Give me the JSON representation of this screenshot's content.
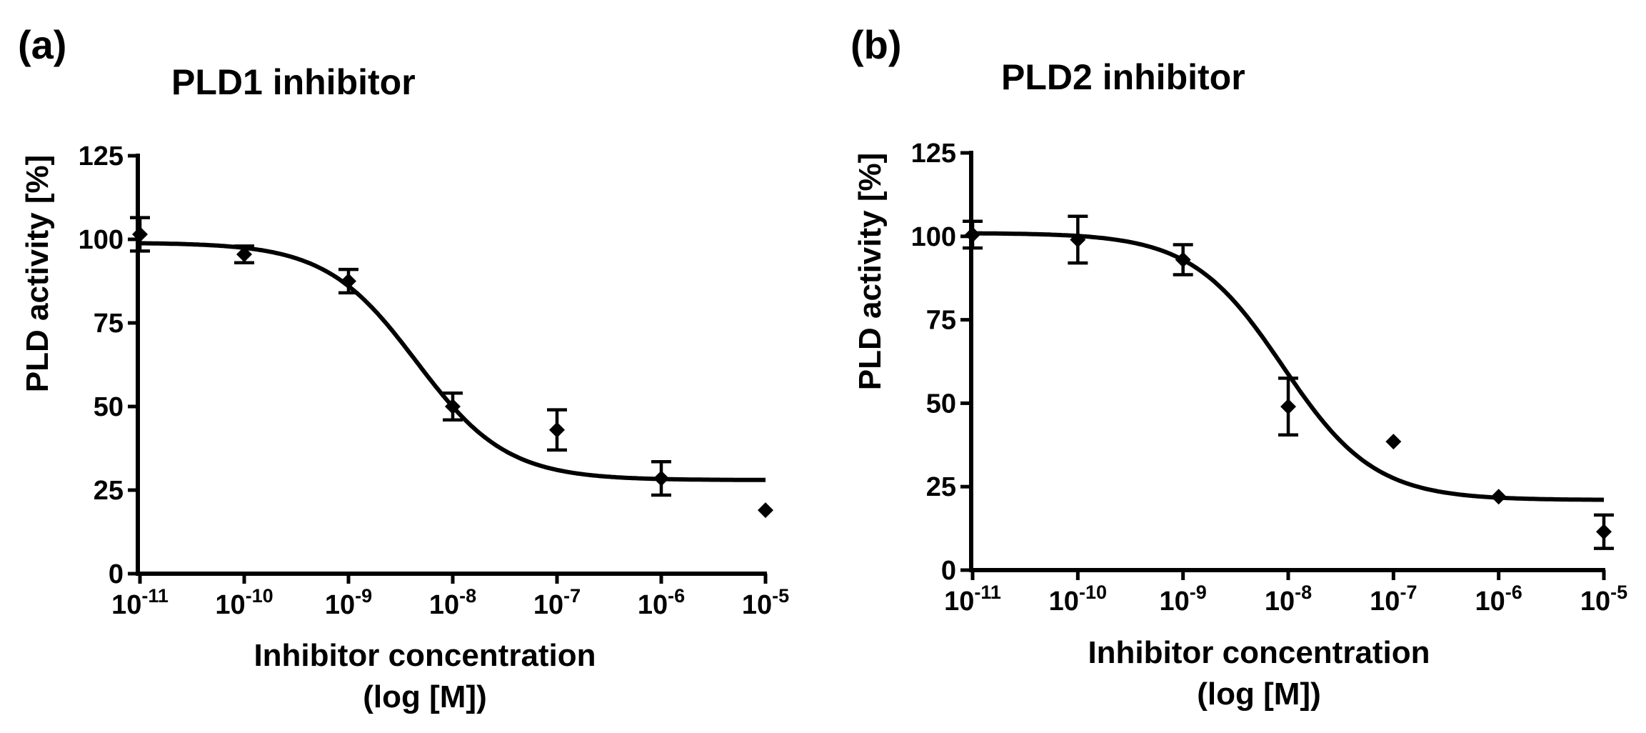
{
  "chart_data": [
    {
      "type": "scatter",
      "panel_label": "(a)",
      "title": "PLD1 inhibitor",
      "xlabel": "Inhibitor concentration",
      "xlabel_line2": "(log [M])",
      "ylabel": "PLD activity [%]",
      "xscale": "log",
      "xlim": [
        1e-11,
        1e-05
      ],
      "ylim": [
        0,
        125
      ],
      "xticks": [
        {
          "base": "10",
          "exp": "-11"
        },
        {
          "base": "10",
          "exp": "-10"
        },
        {
          "base": "10",
          "exp": "-9"
        },
        {
          "base": "10",
          "exp": "-8"
        },
        {
          "base": "10",
          "exp": "-7"
        },
        {
          "base": "10",
          "exp": "-6"
        },
        {
          "base": "10",
          "exp": "-5"
        }
      ],
      "yticks": [
        "0",
        "25",
        "50",
        "75",
        "100",
        "125"
      ],
      "points": [
        {
          "log_x": -11,
          "y": 101.5,
          "err": 5
        },
        {
          "log_x": -10,
          "y": 95.5,
          "err": 2.5
        },
        {
          "log_x": -9,
          "y": 87.5,
          "err": 3.5
        },
        {
          "log_x": -8,
          "y": 50,
          "err": 4
        },
        {
          "log_x": -7,
          "y": 43,
          "err": 6
        },
        {
          "log_x": -6,
          "y": 28.5,
          "err": 5
        },
        {
          "log_x": -5,
          "y": 19,
          "err": 0
        }
      ],
      "fit": {
        "model": "sigmoidal dose-response",
        "top": 99,
        "bottom": 28,
        "log_ec50": -8.35,
        "hill": 1
      }
    },
    {
      "type": "scatter",
      "panel_label": "(b)",
      "title": "PLD2 inhibitor",
      "xlabel": "Inhibitor concentration",
      "xlabel_line2": "(log [M])",
      "ylabel": "PLD activity [%]",
      "xscale": "log",
      "xlim": [
        1e-11,
        1e-05
      ],
      "ylim": [
        0,
        125
      ],
      "xticks": [
        {
          "base": "10",
          "exp": "-11"
        },
        {
          "base": "10",
          "exp": "-10"
        },
        {
          "base": "10",
          "exp": "-9"
        },
        {
          "base": "10",
          "exp": "-8"
        },
        {
          "base": "10",
          "exp": "-7"
        },
        {
          "base": "10",
          "exp": "-6"
        },
        {
          "base": "10",
          "exp": "-5"
        }
      ],
      "yticks": [
        "0",
        "25",
        "50",
        "75",
        "100",
        "125"
      ],
      "points": [
        {
          "log_x": -11,
          "y": 100.5,
          "err": 4
        },
        {
          "log_x": -10,
          "y": 99,
          "err": 7
        },
        {
          "log_x": -9,
          "y": 93,
          "err": 4.5
        },
        {
          "log_x": -8,
          "y": 49,
          "err": 8.5
        },
        {
          "log_x": -7,
          "y": 38.5,
          "err": 0
        },
        {
          "log_x": -6,
          "y": 22,
          "err": 0
        },
        {
          "log_x": -5,
          "y": 11.5,
          "err": 5
        }
      ],
      "fit": {
        "model": "sigmoidal dose-response",
        "top": 101,
        "bottom": 21,
        "log_ec50": -8.05,
        "hill": 1
      }
    }
  ]
}
